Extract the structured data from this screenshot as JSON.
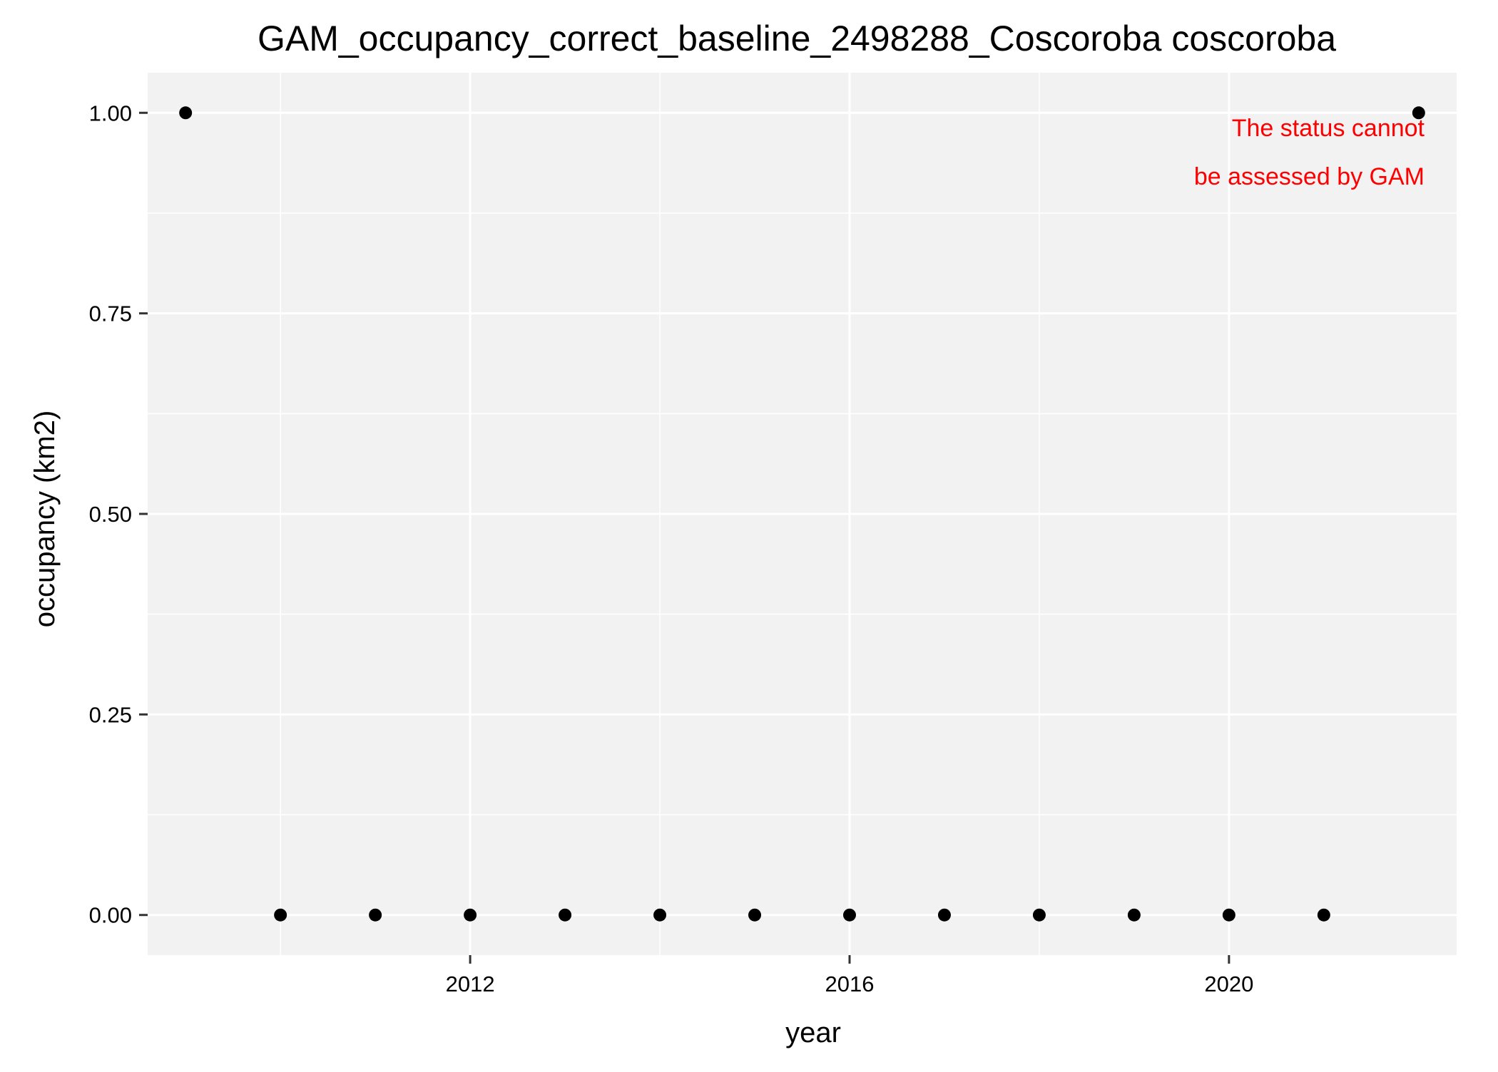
{
  "chart_data": {
    "type": "scatter",
    "title": "GAM_occupancy_correct_baseline_2498288_Coscoroba coscoroba",
    "xlabel": "year",
    "ylabel": "occupancy (km2)",
    "xlim": [
      2008.6,
      2022.4
    ],
    "ylim": [
      -0.05,
      1.05
    ],
    "x_ticks": [
      2012,
      2016,
      2020
    ],
    "x_tick_labels": [
      "2012",
      "2016",
      "2020"
    ],
    "y_ticks": [
      0,
      0.25,
      0.5,
      0.75,
      1
    ],
    "y_tick_labels": [
      "0.00",
      "0.25",
      "0.50",
      "0.75",
      "1.00"
    ],
    "grid": true,
    "points": [
      {
        "x": 2009,
        "y": 1
      },
      {
        "x": 2010,
        "y": 0
      },
      {
        "x": 2011,
        "y": 0
      },
      {
        "x": 2012,
        "y": 0
      },
      {
        "x": 2013,
        "y": 0
      },
      {
        "x": 2014,
        "y": 0
      },
      {
        "x": 2015,
        "y": 0
      },
      {
        "x": 2016,
        "y": 0
      },
      {
        "x": 2017,
        "y": 0
      },
      {
        "x": 2018,
        "y": 0
      },
      {
        "x": 2019,
        "y": 0
      },
      {
        "x": 2020,
        "y": 0
      },
      {
        "x": 2021,
        "y": 0
      },
      {
        "x": 2022,
        "y": 1
      }
    ],
    "annotation": {
      "lines": [
        "The status cannot",
        "be assessed by GAM"
      ],
      "color": "#ff0000",
      "placement": "top-right"
    },
    "colors": {
      "panel_background": "#f2f2f2",
      "grid": "#ffffff",
      "point": "#000000"
    }
  }
}
